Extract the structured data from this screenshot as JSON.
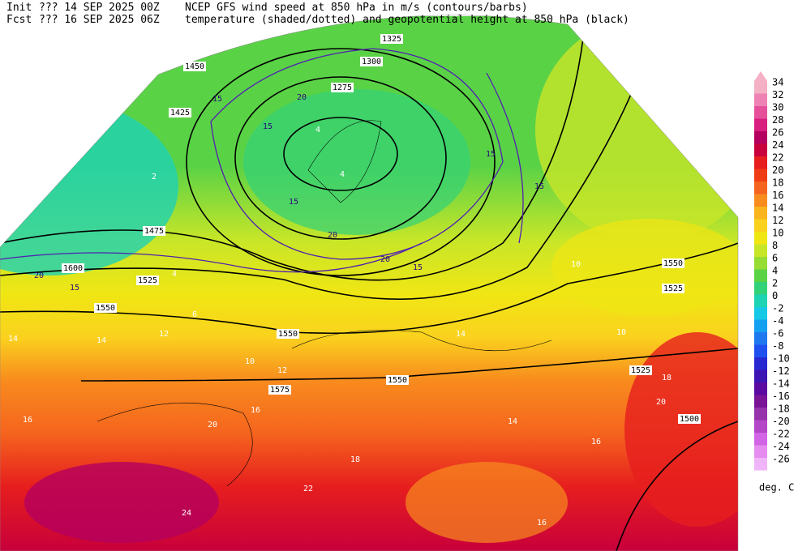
{
  "header": {
    "init_label": "Init",
    "init_run": "??? 14 SEP 2025 00Z",
    "fcst_label": "Fcst",
    "fcst_run": "??? 16 SEP 2025 06Z",
    "line1": "NCEP GFS wind speed at 850 hPa in m/s (contours/barbs)",
    "line2": "temperature (shaded/dotted) and geopotential height at 850 hPa (black)"
  },
  "map": {
    "height_labels": [
      1300,
      1325,
      1275,
      1425,
      1450,
      1475,
      1525,
      1550,
      1600,
      1550,
      1550,
      1575,
      1550,
      1525,
      1525,
      1500
    ],
    "wind_labels": [
      15,
      20,
      15,
      15,
      20,
      15,
      20,
      15,
      15,
      15,
      20
    ],
    "temperature_labels": [
      4,
      4,
      2,
      4,
      6,
      14,
      12,
      14,
      10,
      12,
      10,
      10,
      14,
      16,
      20,
      16,
      18,
      22,
      14,
      16,
      18,
      20,
      24,
      16
    ]
  },
  "colorbar": {
    "ticks": [
      34,
      32,
      30,
      28,
      26,
      24,
      22,
      20,
      18,
      16,
      14,
      12,
      10,
      8,
      6,
      4,
      2,
      0,
      -2,
      -4,
      -6,
      -8,
      -10,
      -12,
      -14,
      -16,
      -18,
      -20,
      -22,
      -24,
      -26
    ],
    "colors": [
      "#f4b0c4",
      "#ee82b4",
      "#e6509a",
      "#d81e7e",
      "#b4005e",
      "#c8003c",
      "#e61e1e",
      "#f03c14",
      "#f5641e",
      "#f88c1e",
      "#fab41e",
      "#fad21e",
      "#f0e614",
      "#c8e628",
      "#96dc32",
      "#5ad246",
      "#32d278",
      "#1ed2b4",
      "#14c8e6",
      "#14a0f0",
      "#1e78f0",
      "#1e50f0",
      "#2828d2",
      "#3c14b4",
      "#5a0aa0",
      "#7a1496",
      "#9632aa",
      "#b446c8",
      "#d264e6",
      "#e68cf0",
      "#f0b4f8"
    ],
    "unit": "deg. C"
  }
}
